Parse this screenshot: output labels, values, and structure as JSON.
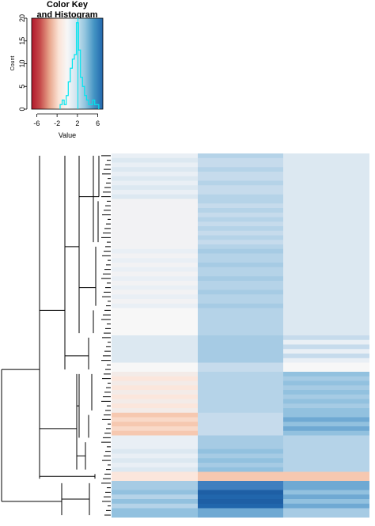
{
  "chart_data": {
    "type": "heatmap",
    "color_key": {
      "title_line1": "Color Key",
      "title_line2": "and Histogram",
      "xlabel": "Value",
      "ylabel": "Count",
      "x_ticks": [
        "-6",
        "-2",
        "2",
        "6"
      ],
      "y_ticks": [
        "0",
        "5",
        "10",
        "15",
        "20"
      ],
      "xlim": [
        -7,
        7
      ],
      "ylim": [
        0,
        20
      ],
      "palette": [
        "#b2182b",
        "#f7f7f7",
        "#2166ac"
      ],
      "histogram_color": "#00e5ee",
      "histogram": {
        "x": [
          -1.2,
          -0.8,
          -0.4,
          0.0,
          0.4,
          0.8,
          1.2,
          1.6,
          2.0,
          2.4,
          2.8,
          3.2,
          3.6,
          4.0,
          4.4,
          4.8,
          5.2,
          5.6,
          6.0
        ],
        "counts": [
          1,
          2,
          1,
          3,
          6,
          9,
          11,
          12,
          19,
          13,
          7,
          5,
          3,
          2,
          1,
          1,
          2,
          1,
          1
        ]
      }
    },
    "heatmap": {
      "n_columns": 3,
      "n_rows": 80,
      "values_note_colors": "",
      "matrix": []
    }
  }
}
